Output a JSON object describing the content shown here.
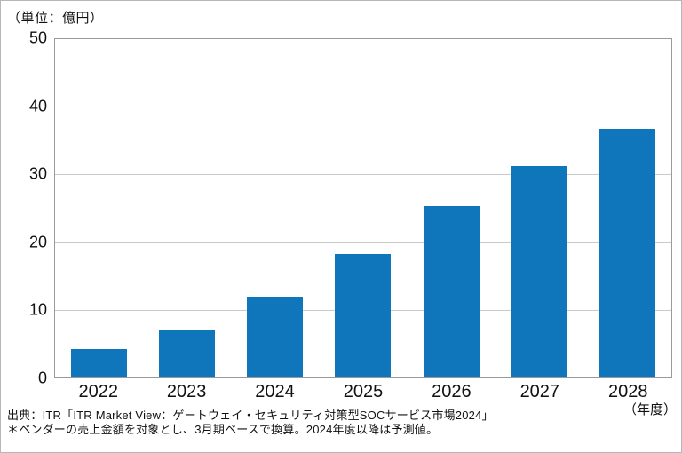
{
  "unit_label": "（単位：億円）",
  "year_axis_label": "（年度）",
  "source": {
    "line1": "出典：ITR「ITR Market View：ゲートウェイ・セキュリティ対策型SOCサービス市場2024」",
    "line2": "＊ベンダーの売上金額を対象とし、3月期ベースで換算。2024年度以降は予測値。"
  },
  "colors": {
    "bar": "#0f76bc",
    "gridline": "#c9c9c9",
    "plot_border": "#9a9a9a",
    "text": "#111111",
    "background": "#ffffff"
  },
  "chart_data": {
    "type": "bar",
    "categories": [
      "2022",
      "2023",
      "2024",
      "2025",
      "2026",
      "2027",
      "2028"
    ],
    "values": [
      4.2,
      7.0,
      12.0,
      18.3,
      25.3,
      31.3,
      36.8
    ],
    "title": "",
    "xlabel": "（年度）",
    "ylabel": "（単位：億円）",
    "ylim": [
      0,
      50
    ],
    "yticks": [
      0,
      10,
      20,
      30,
      40,
      50
    ],
    "grid": true,
    "legend": "none",
    "bar_color": "#0f76bc"
  }
}
